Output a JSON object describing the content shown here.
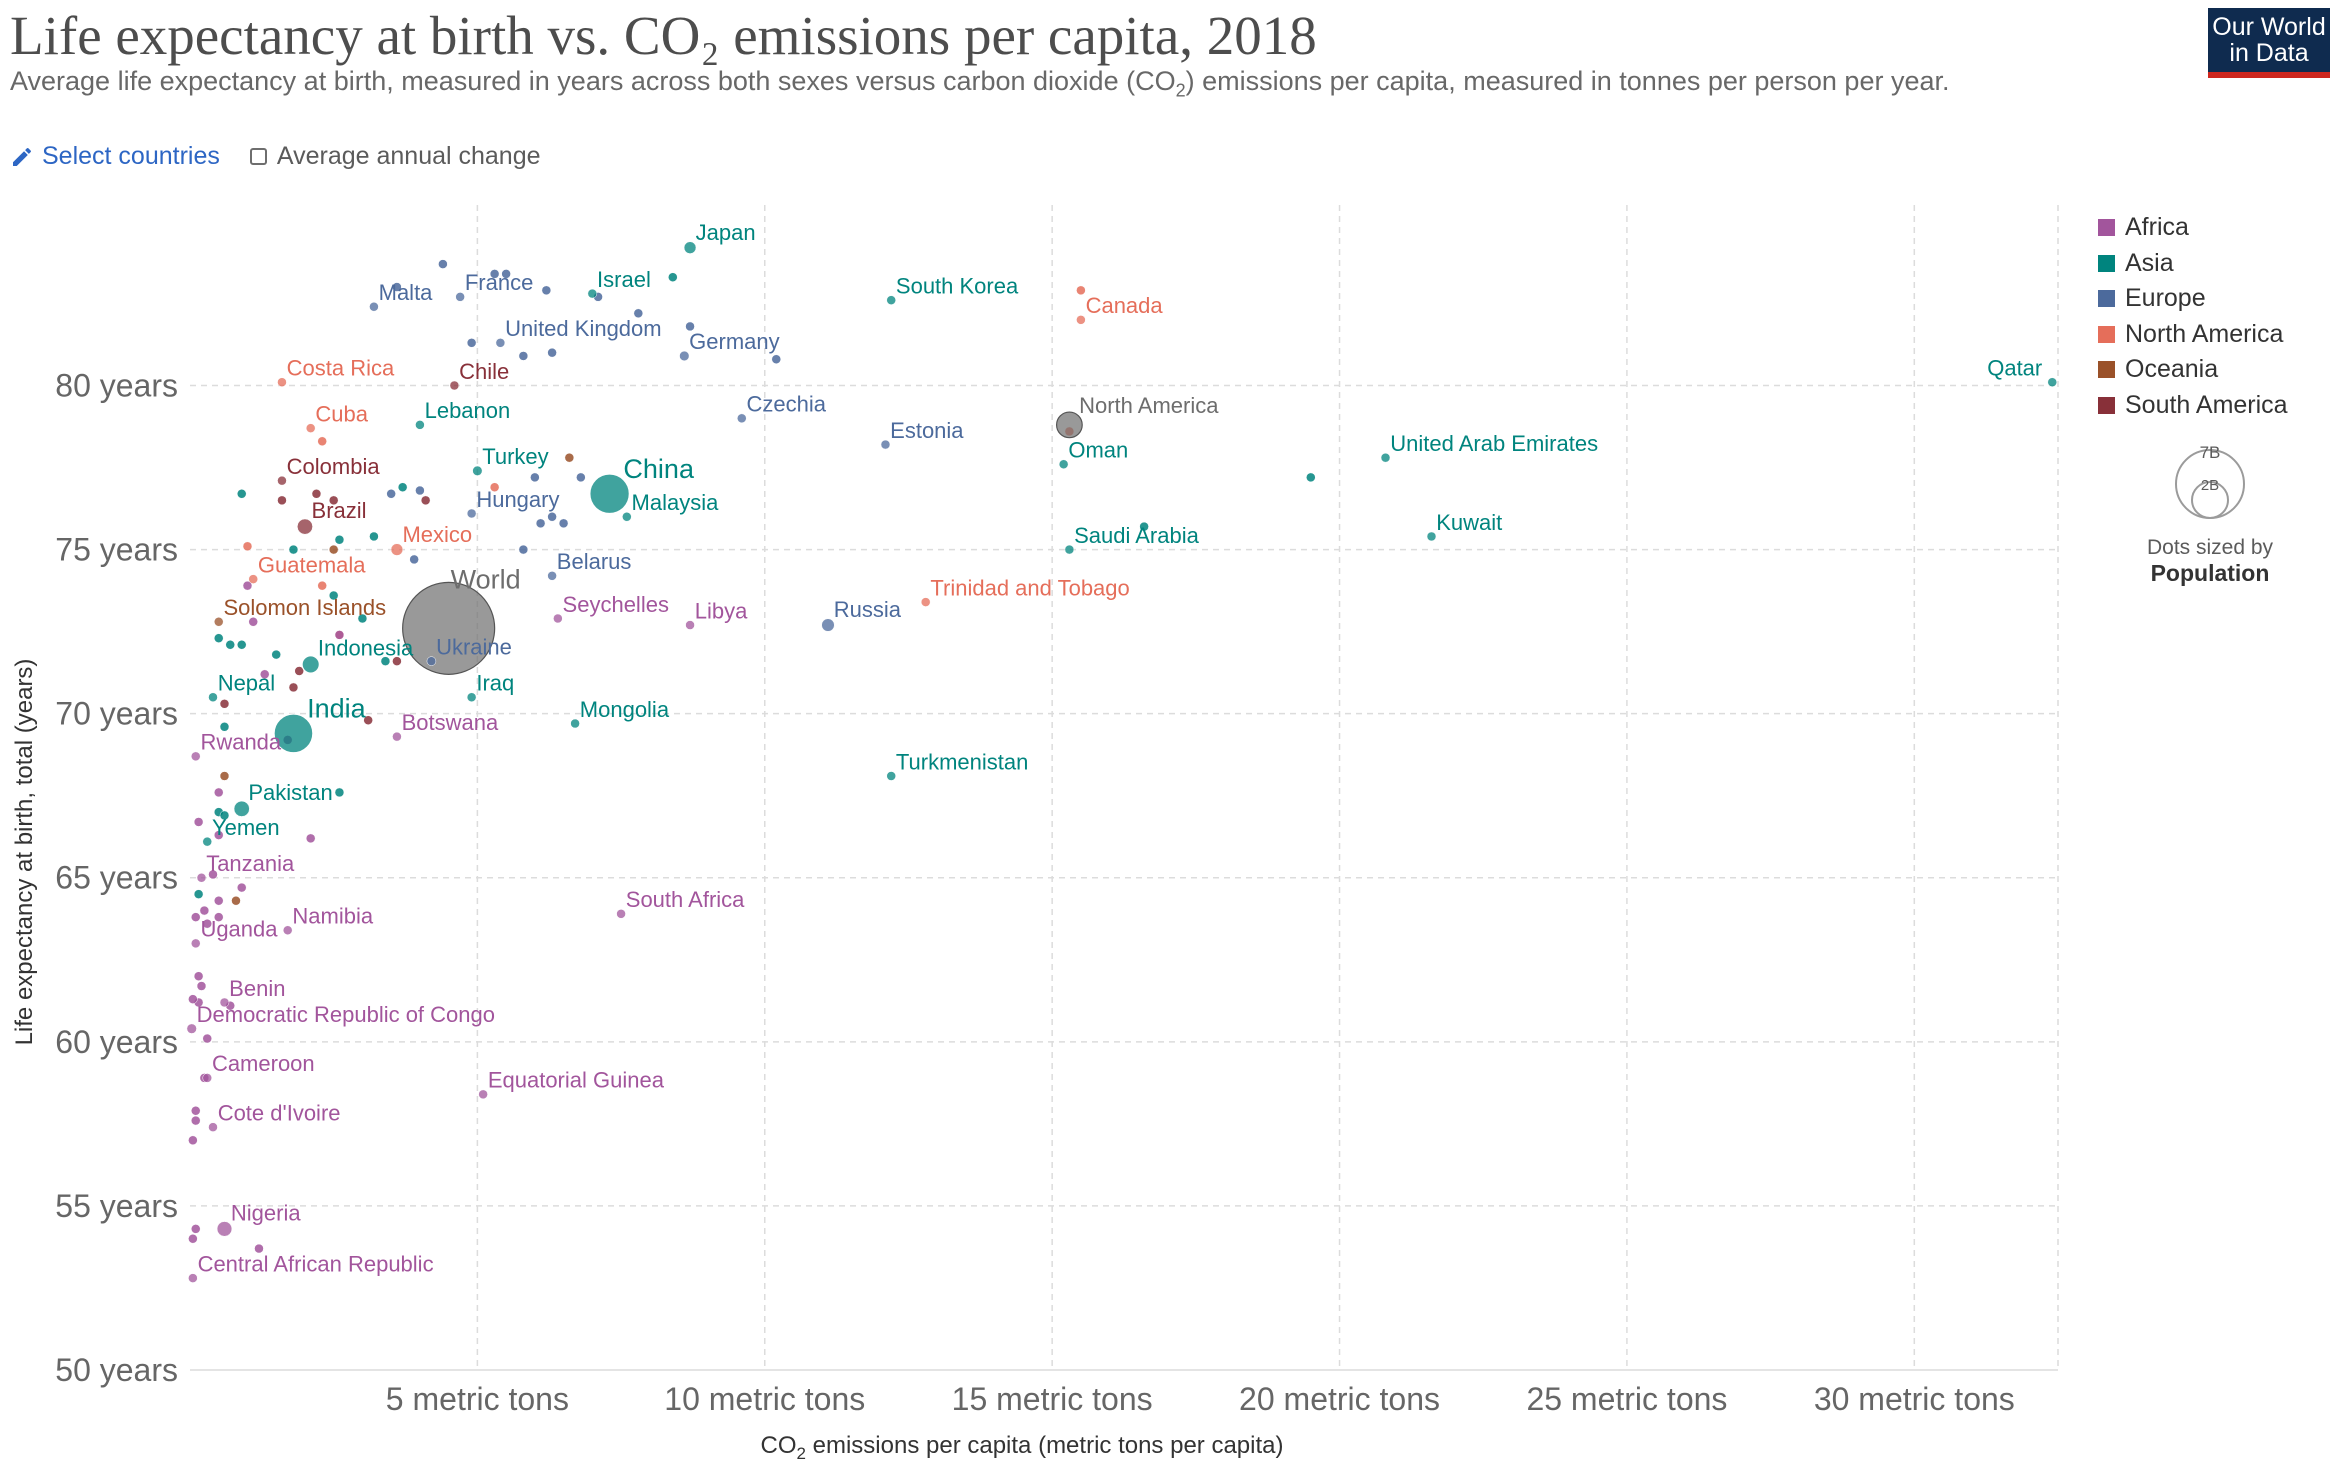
{
  "header": {
    "title": "Life expectancy at birth vs. CO₂ emissions per capita, 2018",
    "subtitle_pre": "Average life expectancy at birth, measured in years across both sexes versus carbon dioxide (CO",
    "subtitle_sub": "2",
    "subtitle_post": ") emissions per capita, measured in tonnes per person per year.",
    "logo_line1": "Our World",
    "logo_line2": "in Data"
  },
  "controls": {
    "select_countries": "Select countries",
    "average_annual_change": "Average annual change"
  },
  "size_legend": {
    "big": "7B",
    "small": "2B",
    "label1": "Dots sized by",
    "label2": "Population"
  },
  "colors": {
    "Africa": "#a2559c",
    "Asia": "#00847e",
    "Europe": "#4c6a9c",
    "North America": "#e56e5a",
    "Oceania": "#9a5129",
    "South America": "#883039",
    "World": "#6d6d6d"
  },
  "chart_data": {
    "type": "scatter",
    "title": "Life expectancy at birth vs. CO₂ emissions per capita, 2018",
    "xlabel_pre": "CO",
    "xlabel_sub": "2",
    "xlabel_post": " emissions per capita (metric tons per capita)",
    "ylabel": "Life expectancy at birth, total (years)",
    "xlim": [
      0,
      32.5
    ],
    "ylim": [
      50,
      85.5
    ],
    "xticks": [
      {
        "v": 5,
        "label": "5 metric tons"
      },
      {
        "v": 10,
        "label": "10 metric tons"
      },
      {
        "v": 15,
        "label": "15 metric tons"
      },
      {
        "v": 20,
        "label": "20 metric tons"
      },
      {
        "v": 25,
        "label": "25 metric tons"
      },
      {
        "v": 30,
        "label": "30 metric tons"
      }
    ],
    "yticks": [
      {
        "v": 50,
        "label": "50 years"
      },
      {
        "v": 55,
        "label": "55 years"
      },
      {
        "v": 60,
        "label": "60 years"
      },
      {
        "v": 65,
        "label": "65 years"
      },
      {
        "v": 70,
        "label": "70 years"
      },
      {
        "v": 75,
        "label": "75 years"
      },
      {
        "v": 80,
        "label": "80 years"
      }
    ],
    "grid": true,
    "legend_position": "top-right",
    "legend": [
      "Africa",
      "Asia",
      "Europe",
      "North America",
      "Oceania",
      "South America"
    ],
    "points": [
      {
        "name": "Japan",
        "region": "Asia",
        "x": 8.7,
        "y": 84.2,
        "pop": 0.127
      },
      {
        "name": "South Korea",
        "region": "Asia",
        "x": 12.2,
        "y": 82.6,
        "pop": 0.052
      },
      {
        "name": "Canada",
        "region": "North America",
        "x": 15.5,
        "y": 82.0,
        "pop": 0.037
      },
      {
        "name": "Qatar",
        "region": "Asia",
        "x": 32.4,
        "y": 80.1,
        "pop": 0.003
      },
      {
        "name": "Malta",
        "region": "Europe",
        "x": 3.2,
        "y": 82.4,
        "pop": 0.0005
      },
      {
        "name": "France",
        "region": "Europe",
        "x": 4.7,
        "y": 82.7,
        "pop": 0.067
      },
      {
        "name": "Israel",
        "region": "Asia",
        "x": 7.0,
        "y": 82.8,
        "pop": 0.009
      },
      {
        "name": "United Kingdom",
        "region": "Europe",
        "x": 5.4,
        "y": 81.3,
        "pop": 0.066
      },
      {
        "name": "Germany",
        "region": "Europe",
        "x": 8.6,
        "y": 80.9,
        "pop": 0.083
      },
      {
        "name": "Costa Rica",
        "region": "North America",
        "x": 1.6,
        "y": 80.1,
        "pop": 0.005
      },
      {
        "name": "Chile",
        "region": "South America",
        "x": 4.6,
        "y": 80.0,
        "pop": 0.019
      },
      {
        "name": "Czechia",
        "region": "Europe",
        "x": 9.6,
        "y": 79.0,
        "pop": 0.011
      },
      {
        "name": "Estonia",
        "region": "Europe",
        "x": 12.1,
        "y": 78.2,
        "pop": 0.001
      },
      {
        "name": "North America",
        "region": "World",
        "x": 15.3,
        "y": 78.8,
        "pop": 0.59
      },
      {
        "name": "Oman",
        "region": "Asia",
        "x": 15.2,
        "y": 77.6,
        "pop": 0.005
      },
      {
        "name": "United Arab Emirates",
        "region": "Asia",
        "x": 20.8,
        "y": 77.8,
        "pop": 0.01
      },
      {
        "name": "Lebanon",
        "region": "Asia",
        "x": 4.0,
        "y": 78.8,
        "pop": 0.007
      },
      {
        "name": "Cuba",
        "region": "North America",
        "x": 2.1,
        "y": 78.7,
        "pop": 0.011
      },
      {
        "name": "Turkey",
        "region": "Asia",
        "x": 5.0,
        "y": 77.4,
        "pop": 0.082
      },
      {
        "name": "China",
        "region": "Asia",
        "x": 7.3,
        "y": 76.7,
        "pop": 1.4
      },
      {
        "name": "Colombia",
        "region": "South America",
        "x": 1.6,
        "y": 77.1,
        "pop": 0.05
      },
      {
        "name": "Malaysia",
        "region": "Asia",
        "x": 7.6,
        "y": 76.0,
        "pop": 0.032
      },
      {
        "name": "Hungary",
        "region": "Europe",
        "x": 4.9,
        "y": 76.1,
        "pop": 0.01
      },
      {
        "name": "Brazil",
        "region": "South America",
        "x": 2.0,
        "y": 75.7,
        "pop": 0.21
      },
      {
        "name": "Kuwait",
        "region": "Asia",
        "x": 21.6,
        "y": 75.4,
        "pop": 0.004
      },
      {
        "name": "Saudi Arabia",
        "region": "Asia",
        "x": 15.3,
        "y": 75.0,
        "pop": 0.034
      },
      {
        "name": "Mexico",
        "region": "North America",
        "x": 3.6,
        "y": 75.0,
        "pop": 0.126
      },
      {
        "name": "Belarus",
        "region": "Europe",
        "x": 6.3,
        "y": 74.2,
        "pop": 0.009
      },
      {
        "name": "Guatemala",
        "region": "North America",
        "x": 1.1,
        "y": 74.1,
        "pop": 0.017
      },
      {
        "name": "Trinidad and Tobago",
        "region": "North America",
        "x": 12.8,
        "y": 73.4,
        "pop": 0.0014
      },
      {
        "name": "World",
        "region": "World",
        "x": 4.5,
        "y": 72.6,
        "pop": 7.6
      },
      {
        "name": "Solomon Islands",
        "region": "Oceania",
        "x": 0.5,
        "y": 72.8,
        "pop": 0.0007
      },
      {
        "name": "Seychelles",
        "region": "Africa",
        "x": 6.4,
        "y": 72.9,
        "pop": 0.0001
      },
      {
        "name": "Libya",
        "region": "Africa",
        "x": 8.7,
        "y": 72.7,
        "pop": 0.007
      },
      {
        "name": "Russia",
        "region": "Europe",
        "x": 11.1,
        "y": 72.7,
        "pop": 0.145
      },
      {
        "name": "Ukraine",
        "region": "Europe",
        "x": 4.2,
        "y": 71.6,
        "pop": 0.044
      },
      {
        "name": "Indonesia",
        "region": "Asia",
        "x": 2.1,
        "y": 71.5,
        "pop": 0.267
      },
      {
        "name": "Iraq",
        "region": "Asia",
        "x": 4.9,
        "y": 70.5,
        "pop": 0.038
      },
      {
        "name": "Nepal",
        "region": "Asia",
        "x": 0.4,
        "y": 70.5,
        "pop": 0.028
      },
      {
        "name": "Mongolia",
        "region": "Asia",
        "x": 6.7,
        "y": 69.7,
        "pop": 0.003
      },
      {
        "name": "India",
        "region": "Asia",
        "x": 1.8,
        "y": 69.4,
        "pop": 1.35
      },
      {
        "name": "Botswana",
        "region": "Africa",
        "x": 3.6,
        "y": 69.3,
        "pop": 0.002
      },
      {
        "name": "Rwanda",
        "region": "Africa",
        "x": 0.1,
        "y": 68.7,
        "pop": 0.012
      },
      {
        "name": "Turkmenistan",
        "region": "Asia",
        "x": 12.2,
        "y": 68.1,
        "pop": 0.006
      },
      {
        "name": "Pakistan",
        "region": "Asia",
        "x": 0.9,
        "y": 67.1,
        "pop": 0.212
      },
      {
        "name": "Yemen",
        "region": "Asia",
        "x": 0.3,
        "y": 66.1,
        "pop": 0.028
      },
      {
        "name": "Tanzania",
        "region": "Africa",
        "x": 0.2,
        "y": 65.0,
        "pop": 0.056
      },
      {
        "name": "South Africa",
        "region": "Africa",
        "x": 7.5,
        "y": 63.9,
        "pop": 0.058
      },
      {
        "name": "Namibia",
        "region": "Africa",
        "x": 1.7,
        "y": 63.4,
        "pop": 0.0025
      },
      {
        "name": "Uganda",
        "region": "Africa",
        "x": 0.1,
        "y": 63.0,
        "pop": 0.043
      },
      {
        "name": "Benin",
        "region": "Africa",
        "x": 0.6,
        "y": 61.2,
        "pop": 0.011
      },
      {
        "name": "Democratic Republic of Congo",
        "region": "Africa",
        "x": 0.03,
        "y": 60.4,
        "pop": 0.084
      },
      {
        "name": "Cameroon",
        "region": "Africa",
        "x": 0.3,
        "y": 58.9,
        "pop": 0.025
      },
      {
        "name": "Equatorial Guinea",
        "region": "Africa",
        "x": 5.1,
        "y": 58.4,
        "pop": 0.0013
      },
      {
        "name": "Cote d'Ivoire",
        "region": "Africa",
        "x": 0.4,
        "y": 57.4,
        "pop": 0.025
      },
      {
        "name": "Nigeria",
        "region": "Africa",
        "x": 0.6,
        "y": 54.3,
        "pop": 0.196
      },
      {
        "name": "Central African Republic",
        "region": "Africa",
        "x": 0.05,
        "y": 52.8,
        "pop": 0.0047
      }
    ],
    "minor_points": [
      {
        "region": "Europe",
        "x": 4.4,
        "y": 83.7
      },
      {
        "region": "Europe",
        "x": 5.3,
        "y": 83.4
      },
      {
        "region": "Europe",
        "x": 5.5,
        "y": 83.4
      },
      {
        "region": "Europe",
        "x": 6.2,
        "y": 82.9
      },
      {
        "region": "Europe",
        "x": 7.1,
        "y": 82.7
      },
      {
        "region": "Europe",
        "x": 7.8,
        "y": 82.2
      },
      {
        "region": "Europe",
        "x": 8.7,
        "y": 81.8
      },
      {
        "region": "Europe",
        "x": 5.8,
        "y": 80.9
      },
      {
        "region": "Europe",
        "x": 6.3,
        "y": 81.0
      },
      {
        "region": "Europe",
        "x": 4.9,
        "y": 81.3
      },
      {
        "region": "Europe",
        "x": 10.2,
        "y": 80.8
      },
      {
        "region": "Europe",
        "x": 3.6,
        "y": 83.0
      },
      {
        "region": "Asia",
        "x": 8.4,
        "y": 83.3
      },
      {
        "region": "Europe",
        "x": 6.0,
        "y": 77.2
      },
      {
        "region": "Europe",
        "x": 6.8,
        "y": 77.2
      },
      {
        "region": "Oceania",
        "x": 6.6,
        "y": 77.8
      },
      {
        "region": "Europe",
        "x": 4.0,
        "y": 76.8
      },
      {
        "region": "Europe",
        "x": 3.5,
        "y": 76.7
      },
      {
        "region": "Europe",
        "x": 6.3,
        "y": 76.0
      },
      {
        "region": "Europe",
        "x": 6.5,
        "y": 75.8
      },
      {
        "region": "Europe",
        "x": 6.1,
        "y": 75.8
      },
      {
        "region": "Europe",
        "x": 5.8,
        "y": 75.0
      },
      {
        "region": "Europe",
        "x": 3.9,
        "y": 74.7
      },
      {
        "region": "Asia",
        "x": 3.7,
        "y": 76.9
      },
      {
        "region": "Asia",
        "x": 19.5,
        "y": 77.2
      },
      {
        "region": "Asia",
        "x": 16.6,
        "y": 75.7
      },
      {
        "region": "Asia",
        "x": 3.2,
        "y": 75.4
      },
      {
        "region": "Asia",
        "x": 2.6,
        "y": 75.3
      },
      {
        "region": "Asia",
        "x": 1.8,
        "y": 75.0
      },
      {
        "region": "Asia",
        "x": 0.9,
        "y": 76.7
      },
      {
        "region": "Asia",
        "x": 2.5,
        "y": 73.6
      },
      {
        "region": "Asia",
        "x": 0.5,
        "y": 72.3
      },
      {
        "region": "Asia",
        "x": 0.7,
        "y": 72.1
      },
      {
        "region": "Asia",
        "x": 1.5,
        "y": 71.8
      },
      {
        "region": "Asia",
        "x": 3.0,
        "y": 72.9
      },
      {
        "region": "Asia",
        "x": 3.4,
        "y": 71.6
      },
      {
        "region": "Asia",
        "x": 0.6,
        "y": 69.6
      },
      {
        "region": "Asia",
        "x": 2.6,
        "y": 67.6
      },
      {
        "region": "Asia",
        "x": 0.5,
        "y": 67.0
      },
      {
        "region": "Asia",
        "x": 0.15,
        "y": 64.5
      },
      {
        "region": "North America",
        "x": 2.3,
        "y": 78.3
      },
      {
        "region": "North America",
        "x": 1.0,
        "y": 75.1
      },
      {
        "region": "North America",
        "x": 2.3,
        "y": 73.9
      },
      {
        "region": "North America",
        "x": 2.6,
        "y": 72.4
      },
      {
        "region": "North America",
        "x": 5.3,
        "y": 76.9
      },
      {
        "region": "North America",
        "x": 15.3,
        "y": 78.6
      },
      {
        "region": "North America",
        "x": 15.5,
        "y": 82.9
      },
      {
        "region": "South America",
        "x": 2.2,
        "y": 76.7
      },
      {
        "region": "South America",
        "x": 1.6,
        "y": 76.5
      },
      {
        "region": "South America",
        "x": 2.5,
        "y": 76.5
      },
      {
        "region": "South America",
        "x": 4.1,
        "y": 76.5
      },
      {
        "region": "South America",
        "x": 1.9,
        "y": 71.3
      },
      {
        "region": "South America",
        "x": 1.8,
        "y": 70.8
      },
      {
        "region": "South America",
        "x": 3.6,
        "y": 71.6
      },
      {
        "region": "South America",
        "x": 3.1,
        "y": 69.8
      },
      {
        "region": "South America",
        "x": 0.6,
        "y": 70.3
      },
      {
        "region": "Africa",
        "x": 1.0,
        "y": 73.9
      },
      {
        "region": "Africa",
        "x": 1.1,
        "y": 72.8
      },
      {
        "region": "Africa",
        "x": 2.6,
        "y": 72.4
      },
      {
        "region": "Africa",
        "x": 1.3,
        "y": 71.2
      },
      {
        "region": "Africa",
        "x": 1.7,
        "y": 69.2
      },
      {
        "region": "Africa",
        "x": 0.5,
        "y": 67.6
      },
      {
        "region": "Africa",
        "x": 2.1,
        "y": 66.2
      },
      {
        "region": "Africa",
        "x": 0.15,
        "y": 66.7
      },
      {
        "region": "Africa",
        "x": 0.4,
        "y": 65.1
      },
      {
        "region": "Africa",
        "x": 0.9,
        "y": 64.7
      },
      {
        "region": "Africa",
        "x": 0.5,
        "y": 64.3
      },
      {
        "region": "Africa",
        "x": 0.25,
        "y": 64.0
      },
      {
        "region": "Africa",
        "x": 0.1,
        "y": 63.8
      },
      {
        "region": "Africa",
        "x": 0.3,
        "y": 63.6
      },
      {
        "region": "Africa",
        "x": 0.5,
        "y": 63.8
      },
      {
        "region": "Africa",
        "x": 0.15,
        "y": 62.0
      },
      {
        "region": "Africa",
        "x": 0.2,
        "y": 61.7
      },
      {
        "region": "Africa",
        "x": 0.7,
        "y": 61.1
      },
      {
        "region": "Africa",
        "x": 0.15,
        "y": 61.2
      },
      {
        "region": "Africa",
        "x": 0.05,
        "y": 61.3
      },
      {
        "region": "Africa",
        "x": 0.3,
        "y": 60.1
      },
      {
        "region": "Africa",
        "x": 0.25,
        "y": 58.9
      },
      {
        "region": "Africa",
        "x": 0.1,
        "y": 57.9
      },
      {
        "region": "Africa",
        "x": 0.1,
        "y": 57.6
      },
      {
        "region": "Africa",
        "x": 0.05,
        "y": 57.0
      },
      {
        "region": "Africa",
        "x": 1.2,
        "y": 53.7
      },
      {
        "region": "Africa",
        "x": 0.1,
        "y": 54.3
      },
      {
        "region": "Africa",
        "x": 0.05,
        "y": 54.0
      },
      {
        "region": "Oceania",
        "x": 0.6,
        "y": 68.1
      },
      {
        "region": "Oceania",
        "x": 0.8,
        "y": 64.3
      },
      {
        "region": "Oceania",
        "x": 2.5,
        "y": 75.0
      },
      {
        "region": "Asia",
        "x": 0.6,
        "y": 66.9
      },
      {
        "region": "Africa",
        "x": 0.5,
        "y": 66.3
      },
      {
        "region": "Asia",
        "x": 0.9,
        "y": 72.1
      }
    ]
  }
}
